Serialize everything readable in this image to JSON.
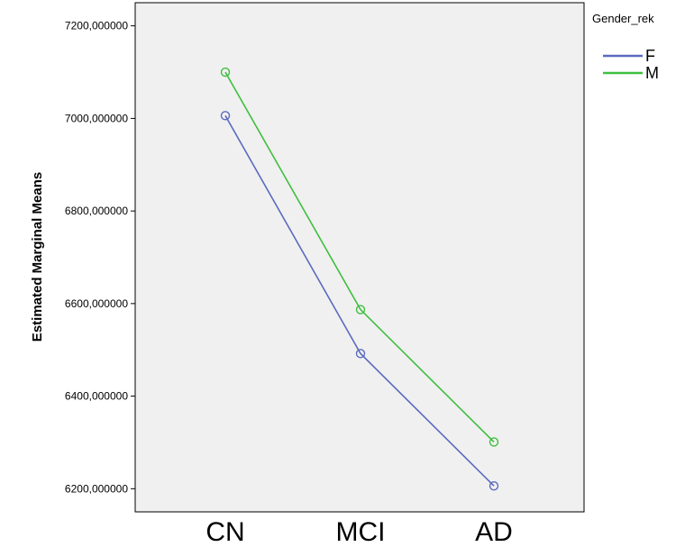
{
  "chart_data": {
    "type": "line",
    "categories": [
      "CN",
      "MCI",
      "AD"
    ],
    "ylabel": "Estimated Marginal Means",
    "xlabel": "",
    "ylim": [
      6150,
      7250
    ],
    "yticks": [
      6200,
      6400,
      6600,
      6800,
      7000,
      7200
    ],
    "ytick_labels": [
      "6200,000000",
      "6400,000000",
      "6600,000000",
      "6800,000000",
      "7000,000000",
      "7200,000000"
    ],
    "grid": false,
    "plot_background": "#f0f0f0",
    "legend": {
      "title": "Gender_rek",
      "placement": "right"
    },
    "series": [
      {
        "name": "F",
        "color": "#5b6bbf",
        "values": [
          7006,
          6492,
          6206
        ]
      },
      {
        "name": "M",
        "color": "#3fbf3f",
        "values": [
          7100,
          6587,
          6301
        ]
      }
    ]
  }
}
